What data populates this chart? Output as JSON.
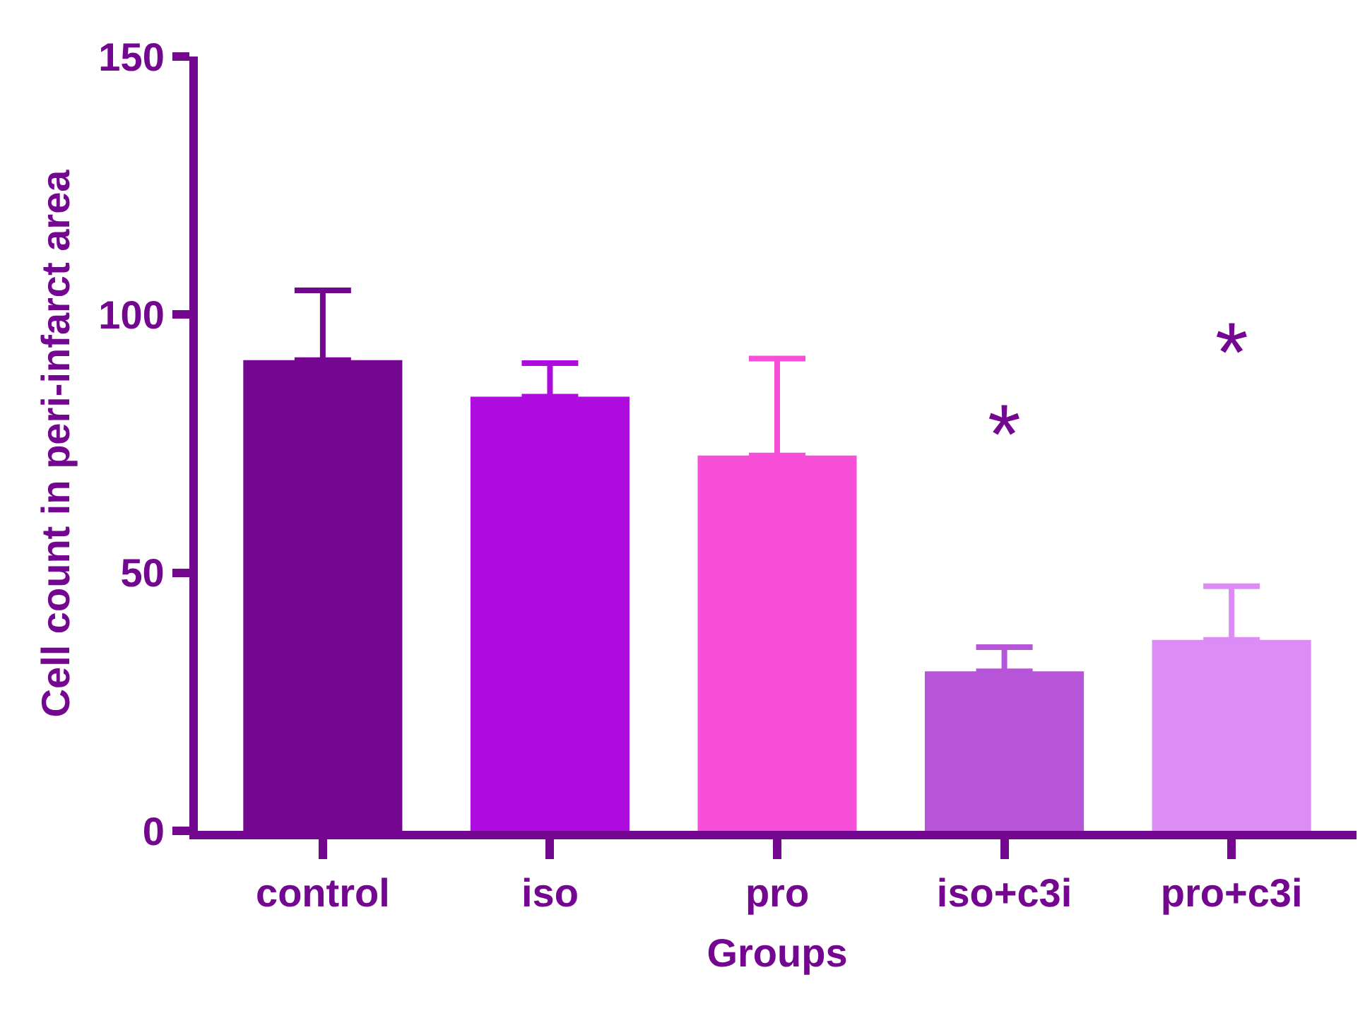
{
  "chart_data": {
    "type": "bar",
    "xlabel": "Groups",
    "ylabel": "Cell count in peri-infarct area",
    "categories": [
      "control",
      "iso",
      "pro",
      "iso+c3i",
      "pro+c3i"
    ],
    "values": [
      91.2,
      84.1,
      72.7,
      30.9,
      37
    ],
    "colors": [
      "#74078f",
      "#ae0cdf",
      "#f84fd9",
      "#b755d9",
      "#dd8bf5"
    ],
    "errors": [
      [
        91.2,
        104.7
      ],
      [
        84.1,
        90.6
      ],
      [
        72.7,
        91.5
      ],
      [
        30.9,
        35.6
      ],
      [
        37,
        47.4
      ]
    ],
    "ylim": [
      0,
      150
    ],
    "yticks": [
      0,
      50,
      100,
      150
    ],
    "grid": false,
    "annotations": [
      "*",
      "*"
    ]
  }
}
